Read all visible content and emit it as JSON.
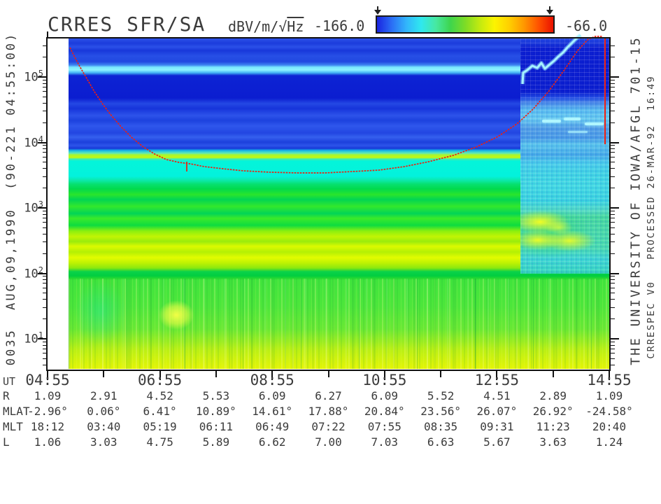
{
  "header": {
    "title": "CRRES SFR/SA",
    "colorbar": {
      "units_prefix": "dBV/m/",
      "units_radical": "√",
      "units_radicand": "Hz",
      "min_label": "-166.0",
      "max_label": "-66.0",
      "gradient": [
        "#1a24e0",
        "#2b6ef5",
        "#32b5fb",
        "#2fe8ef",
        "#47e8a2",
        "#3ed54d",
        "#7ddc26",
        "#c3ea10",
        "#fcf400",
        "#ffcf00",
        "#ff9800",
        "#ff5200",
        "#e91100"
      ]
    }
  },
  "side_labels": {
    "left_vertical": "0035  AUG,09,1990  (90-221 04:55:00)",
    "right_vertical_primary": "THE UNIVERSITY OF IOWA/AFGL 701-15",
    "right_vertical_secondary": "CRRESPEC V0   PROCESSED 26-MAR-92  16:49"
  },
  "table": {
    "rows": [
      {
        "key": "ut",
        "label": "UT",
        "values": [
          "04:55",
          "",
          "06:55",
          "",
          "08:55",
          "",
          "10:55",
          "",
          "12:55",
          "",
          "14:55"
        ]
      },
      {
        "key": "r",
        "label": "R",
        "values": [
          "1.09",
          "2.91",
          "4.52",
          "5.53",
          "6.09",
          "6.27",
          "6.09",
          "5.52",
          "4.51",
          "2.89",
          "1.09"
        ]
      },
      {
        "key": "mlat",
        "label": "MLAT",
        "values": [
          "-2.96°",
          "0.06°",
          "6.41°",
          "10.89°",
          "14.61°",
          "17.88°",
          "20.84°",
          "23.56°",
          "26.07°",
          "26.92°",
          "-24.58°"
        ]
      },
      {
        "key": "mlt",
        "label": "MLT",
        "values": [
          "18:12",
          "03:40",
          "05:19",
          "06:11",
          "06:49",
          "07:22",
          "07:55",
          "08:35",
          "09:31",
          "11:23",
          "20:40"
        ]
      },
      {
        "key": "l",
        "label": "L",
        "values": [
          "1.06",
          "3.03",
          "4.75",
          "5.89",
          "6.62",
          "7.00",
          "7.03",
          "6.63",
          "5.67",
          "3.63",
          "1.24"
        ]
      }
    ]
  },
  "chart_data": {
    "type": "heatmap",
    "title": "CRRES SFR/SA",
    "value_units": "dBV/m/√Hz",
    "color_scale": {
      "min": -166.0,
      "max": -66.0,
      "palette_order": "blue→cyan→green→yellow→orange→red"
    },
    "x": {
      "label": "UT",
      "hourly_ticks": [
        "04:55",
        "05:55",
        "06:55",
        "07:55",
        "08:55",
        "09:55",
        "10:55",
        "11:55",
        "12:55",
        "13:55",
        "14:55"
      ],
      "labeled_ticks": [
        "04:55",
        "06:55",
        "08:55",
        "10:55",
        "12:55",
        "14:55"
      ],
      "data_start_ut": "~05:17"
    },
    "y": {
      "scale": "log",
      "decades": [
        5,
        4,
        3,
        2,
        1
      ],
      "unit": "Hz",
      "approx_range_hz": [
        3.5,
        400000
      ]
    },
    "orbit_parameters_hourly": {
      "R": [
        1.09,
        2.91,
        4.52,
        5.53,
        6.09,
        6.27,
        6.09,
        5.52,
        4.51,
        2.89,
        1.09
      ],
      "MLAT_deg": [
        -2.96,
        0.06,
        6.41,
        10.89,
        14.61,
        17.88,
        20.84,
        23.56,
        26.07,
        26.92,
        -24.58
      ],
      "MLT": [
        "18:12",
        "03:40",
        "05:19",
        "06:11",
        "06:49",
        "07:22",
        "07:55",
        "08:35",
        "09:31",
        "11:23",
        "20:40"
      ],
      "L": [
        1.06,
        3.03,
        4.75,
        5.89,
        6.62,
        7.0,
        7.03,
        6.63,
        5.67,
        3.63,
        1.24
      ]
    },
    "features": [
      "bright cyan horizontal band near 1.5e5 Hz across whole plot",
      "dark blue background between 1e4 and 1e5 Hz",
      "yellow-green edge line then bright cyan band just below 1e4 Hz",
      "green and yellow horizontal banding between 1e2 and 1e3 Hz",
      "vertically streaked green/yellow region below 1e2 Hz with bright yellow patch near 06:40 UT",
      "red fce curve: U-shape from top-left dipping to ~4e3 Hz near 09:30 UT then rising to top-right, plus vertical red segment at right edge",
      "turbulent cyan noise region after ~13:20 UT with jagged rising cyan upper-hybrid line and yellow emission blobs near 3e2-1e3 Hz"
    ]
  }
}
